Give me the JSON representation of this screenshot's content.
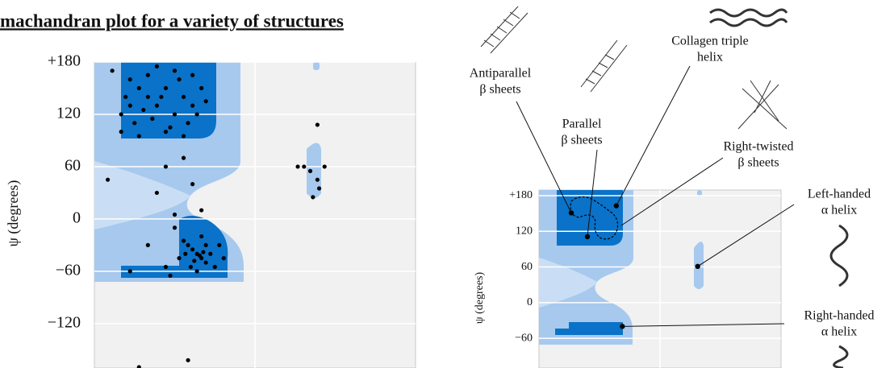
{
  "chart_data": [
    {
      "type": "scatter",
      "title": "machandran plot for a variety of structures",
      "ylabel": "ψ (degrees)",
      "xlim": [
        -180,
        180
      ],
      "ylim": [
        -170,
        180
      ],
      "yticks": [
        {
          "value": 180,
          "label": "+180"
        },
        120,
        60,
        0,
        {
          "value": -60,
          "label": "−60"
        },
        {
          "value": -120,
          "label": "−120"
        }
      ],
      "grid": true,
      "color": "#000000",
      "x": [
        -140,
        -130,
        -120,
        -110,
        -100,
        -90,
        -80,
        -70,
        -60,
        -150,
        -135,
        -125,
        -115,
        -105,
        -95,
        -85,
        -75,
        -65,
        -145,
        -120,
        -100,
        -90,
        -130,
        -110,
        -80,
        -55,
        -140,
        -70,
        -160,
        -150,
        -80,
        -100,
        -70,
        -110,
        -60,
        -90,
        -165,
        -65,
        -60,
        -70,
        -55,
        -75,
        -62,
        -58,
        -68,
        -50,
        -80,
        -85,
        -60,
        -45,
        -72,
        -40,
        -90,
        -65,
        -55,
        -35,
        -78,
        -120,
        -100,
        -140,
        -95,
        55,
        62,
        70,
        65,
        72,
        78,
        70,
        48,
        -130,
        -75
      ],
      "values": [
        160,
        150,
        140,
        130,
        150,
        120,
        140,
        130,
        150,
        120,
        110,
        125,
        115,
        140,
        105,
        160,
        110,
        120,
        140,
        165,
        100,
        170,
        95,
        175,
        95,
        135,
        130,
        165,
        170,
        100,
        70,
        60,
        40,
        30,
        10,
        5,
        45,
        -40,
        -45,
        -35,
        -50,
        -30,
        -42,
        -38,
        -48,
        -40,
        -25,
        -45,
        -20,
        -55,
        -55,
        -30,
        -10,
        -60,
        -30,
        -45,
        -40,
        -30,
        -55,
        -60,
        -65,
        60,
        55,
        45,
        25,
        35,
        60,
        108,
        60,
        -170,
        -162
      ]
    },
    {
      "type": "scatter",
      "ylabel": "ψ (degrees)",
      "xlim": [
        -180,
        180
      ],
      "ylim": [
        -110,
        180
      ],
      "yticks": [
        {
          "value": 180,
          "label": "+180"
        },
        120,
        60,
        0,
        {
          "value": -60,
          "label": "−60"
        }
      ],
      "grid": true,
      "color": "#000000",
      "x": [
        -132,
        -108,
        -65,
        56,
        -56
      ],
      "values": [
        151,
        111,
        163,
        61,
        -40
      ],
      "annotations": [
        [
          "Antiparallel",
          "β sheets"
        ],
        [
          "Parallel",
          "β sheets"
        ],
        [
          "Collagen triple",
          "helix"
        ],
        [
          "Right-twisted",
          "β sheets"
        ],
        [
          "Left-handed",
          "α helix"
        ],
        [
          "Right-handed",
          "α helix"
        ]
      ]
    }
  ]
}
